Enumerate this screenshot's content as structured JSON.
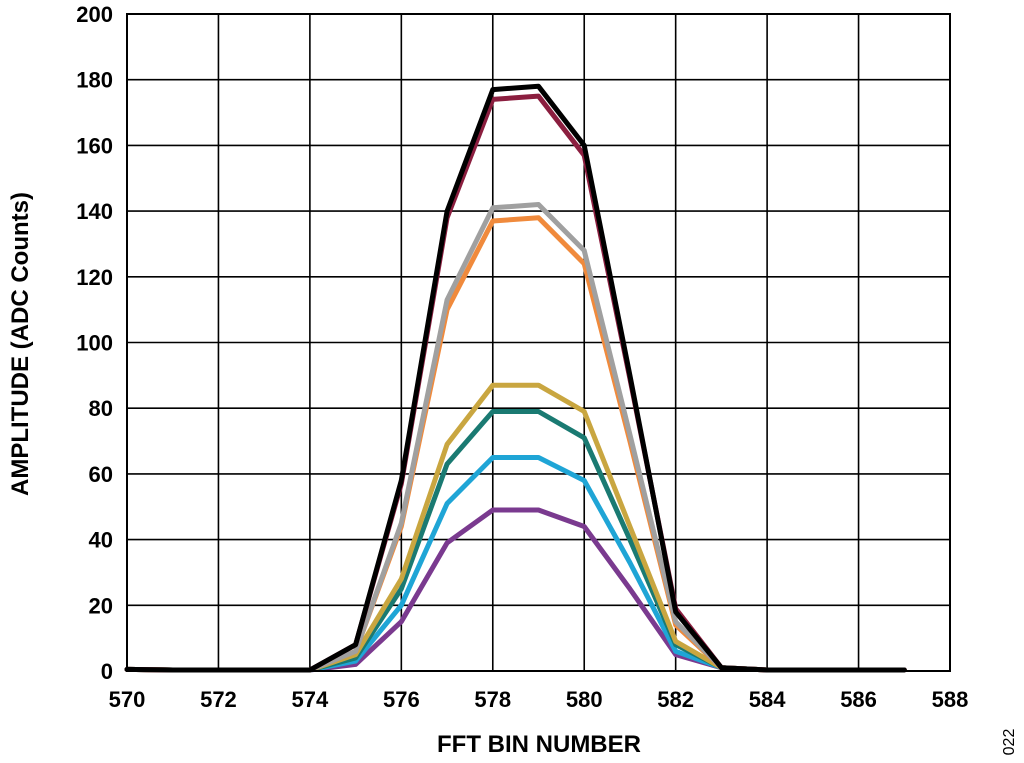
{
  "chart_data": {
    "type": "line",
    "title": "",
    "xlabel": "FFT BIN NUMBER",
    "ylabel": "AMPLITUDE (ADC Counts)",
    "xlim": [
      570,
      588
    ],
    "ylim": [
      0,
      200
    ],
    "xticks": [
      570,
      572,
      574,
      576,
      578,
      580,
      582,
      584,
      586,
      588
    ],
    "yticks": [
      0,
      20,
      40,
      60,
      80,
      100,
      120,
      140,
      160,
      180,
      200
    ],
    "grid": true,
    "legend": "none",
    "x": [
      570,
      571,
      572,
      573,
      574,
      575,
      576,
      577,
      578,
      579,
      580,
      581,
      582,
      583,
      584,
      585,
      586,
      587
    ],
    "series": [
      {
        "color": "#000000",
        "values": [
          0.5,
          0.3,
          0.3,
          0.3,
          0.3,
          8,
          58,
          140,
          177,
          178,
          160,
          90,
          18,
          1,
          0.3,
          0.3,
          0.3,
          0.3
        ]
      },
      {
        "color": "#8B1E3F",
        "values": [
          0.5,
          0.3,
          0.3,
          0.3,
          0.3,
          8,
          57,
          138,
          174,
          175,
          157,
          89,
          19,
          1,
          0.3,
          0.3,
          0.3,
          0.3
        ]
      },
      {
        "color": "#A0A0A0",
        "values": [
          0.5,
          0.3,
          0.3,
          0.3,
          0.3,
          6,
          45,
          113,
          141,
          142,
          128,
          72,
          15,
          1,
          0.3,
          0.3,
          0.3,
          0.3
        ]
      },
      {
        "color": "#F08A3C",
        "values": [
          0.5,
          0.3,
          0.3,
          0.3,
          0.3,
          6,
          44,
          110,
          137,
          138,
          124,
          70,
          14,
          1,
          0.3,
          0.3,
          0.3,
          0.3
        ]
      },
      {
        "color": "#C9A640",
        "values": [
          0.5,
          0.3,
          0.3,
          0.3,
          0.3,
          5,
          28,
          69,
          87,
          87,
          79,
          44,
          9,
          1,
          0.3,
          0.3,
          0.3,
          0.3
        ]
      },
      {
        "color": "#1A7A72",
        "values": [
          0.5,
          0.3,
          0.3,
          0.3,
          0.3,
          4,
          25,
          63,
          79,
          79,
          71,
          40,
          8,
          1,
          0.3,
          0.3,
          0.3,
          0.3
        ]
      },
      {
        "color": "#1FA5D6",
        "values": [
          0.5,
          0.3,
          0.3,
          0.3,
          0.3,
          3,
          20,
          51,
          65,
          65,
          58,
          33,
          6,
          1,
          0.3,
          0.3,
          0.3,
          0.3
        ]
      },
      {
        "color": "#7A3A8F",
        "values": [
          0.5,
          0.3,
          0.3,
          0.3,
          0.3,
          2,
          15,
          39,
          49,
          49,
          44,
          25,
          5,
          1,
          0.3,
          0.3,
          0.3,
          0.3
        ]
      }
    ]
  },
  "figure_id": "022"
}
